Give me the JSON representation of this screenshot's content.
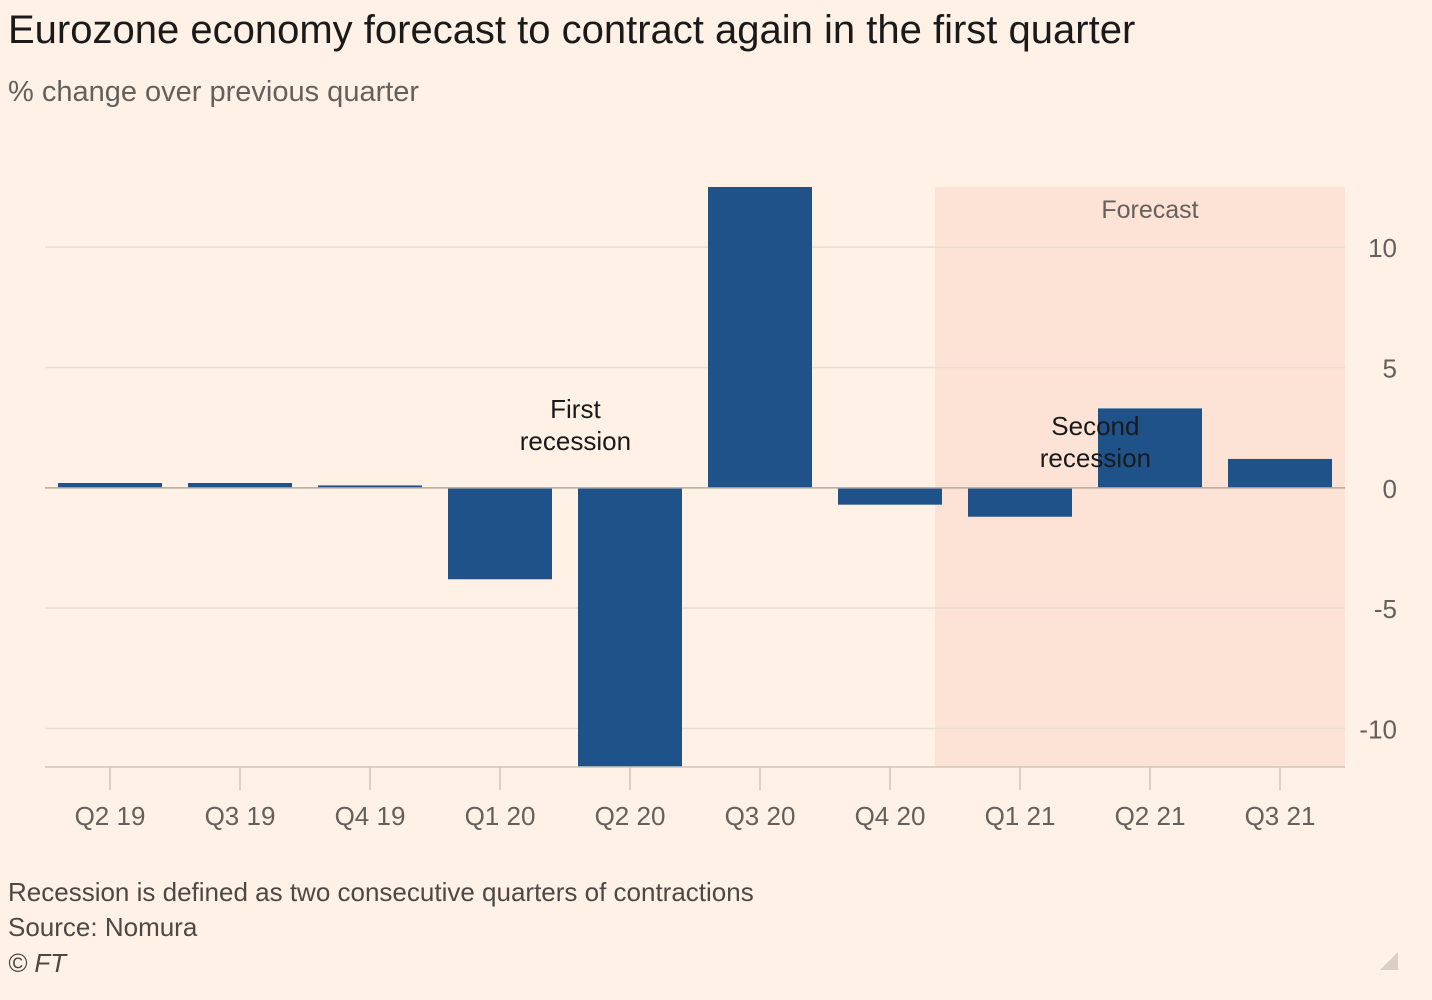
{
  "header": {
    "title": "Eurozone economy forecast to contract again in the first quarter",
    "subtitle": "% change over previous quarter"
  },
  "footer": {
    "note": "Recession is defined as two consecutive quarters of contractions",
    "source": "Source: Nomura",
    "copyright": "© FT"
  },
  "colors": {
    "bar": "#1f5289",
    "background": "#fff1e5",
    "forecast_shade": "#fce3d6",
    "grid": "#e8ddd3",
    "axis_text": "#66605c"
  },
  "chart_data": {
    "type": "bar",
    "title": "Eurozone economy forecast to contract again in the first quarter",
    "ylabel": "% change over previous quarter",
    "categories": [
      "Q2 19",
      "Q3 19",
      "Q4 19",
      "Q1 20",
      "Q2 20",
      "Q3 20",
      "Q4 20",
      "Q1 21",
      "Q2 21",
      "Q3 21"
    ],
    "values": [
      0.2,
      0.2,
      0.1,
      -3.8,
      -11.6,
      12.5,
      -0.7,
      -1.2,
      3.3,
      1.2
    ],
    "ylim": [
      -11.6,
      12.5
    ],
    "yticks": [
      10,
      5,
      0,
      -5,
      -10
    ],
    "ytick_labels": [
      "10",
      "5",
      "0",
      "-5",
      "-10"
    ],
    "y_axis_side": "right",
    "forecast": {
      "label": "Forecast",
      "from_category": "Q1 21",
      "to_category": "Q3 21"
    },
    "annotations": [
      {
        "lines": [
          "First",
          "recession"
        ],
        "category": "Q1 20",
        "y": 2.9
      },
      {
        "lines": [
          "Second",
          "recession"
        ],
        "category": "Q1 21",
        "y": 2.2
      }
    ]
  }
}
